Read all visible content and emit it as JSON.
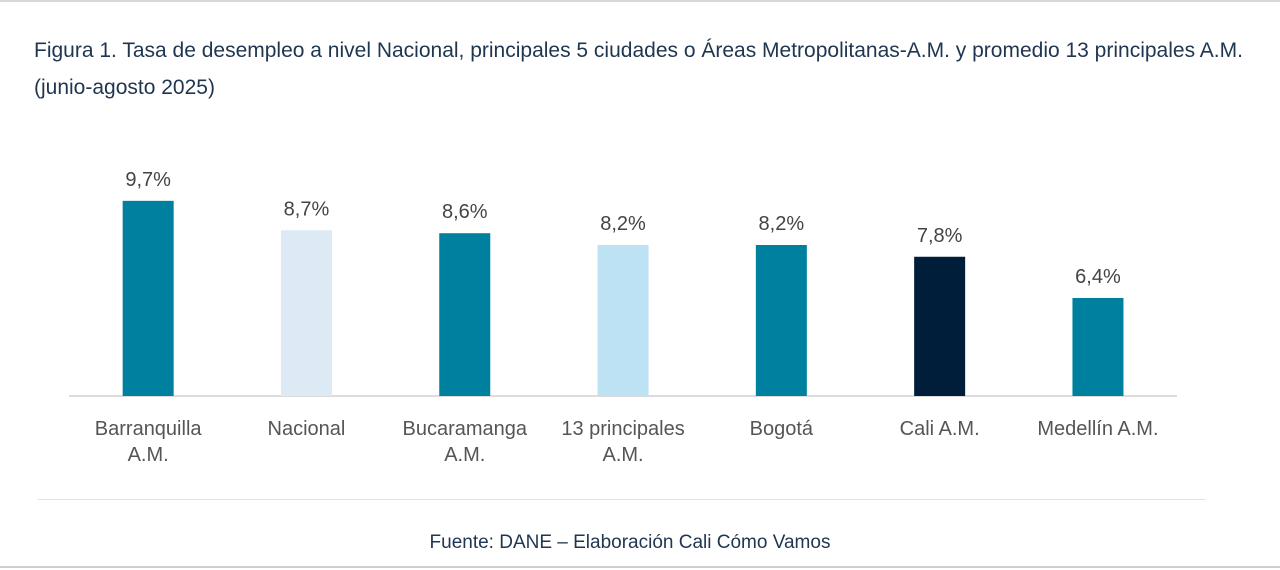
{
  "chart_data": {
    "type": "bar",
    "title": "Figura 1. Tasa de desempleo a nivel Nacional, principales 5 ciudades o Áreas Metropolitanas-A.M. y promedio 13 principales A.M. (junio-agosto 2025)",
    "categories": [
      [
        "Barranquilla",
        "A.M."
      ],
      [
        "Nacional"
      ],
      [
        "Bucaramanga",
        "A.M."
      ],
      [
        "13 principales",
        "A.M."
      ],
      [
        "Bogotá"
      ],
      [
        "Cali A.M."
      ],
      [
        "Medellín A.M."
      ]
    ],
    "values": [
      9.7,
      8.7,
      8.6,
      8.2,
      8.2,
      7.8,
      6.4
    ],
    "data_labels": [
      "9,7%",
      "8,7%",
      "8,6%",
      "8,2%",
      "8,2%",
      "7,8%",
      "6,4%"
    ],
    "colors": [
      "#00809f",
      "#dde9f5",
      "#00809f",
      "#bde2f4",
      "#00809f",
      "#001d3a",
      "#00809f"
    ],
    "xlabel": "",
    "ylabel": "unit: %",
    "ylim": [
      3.07,
      10
    ],
    "grid": false,
    "legend": "none"
  },
  "source": "Fuente: DANE – Elaboración Cali Cómo Vamos"
}
